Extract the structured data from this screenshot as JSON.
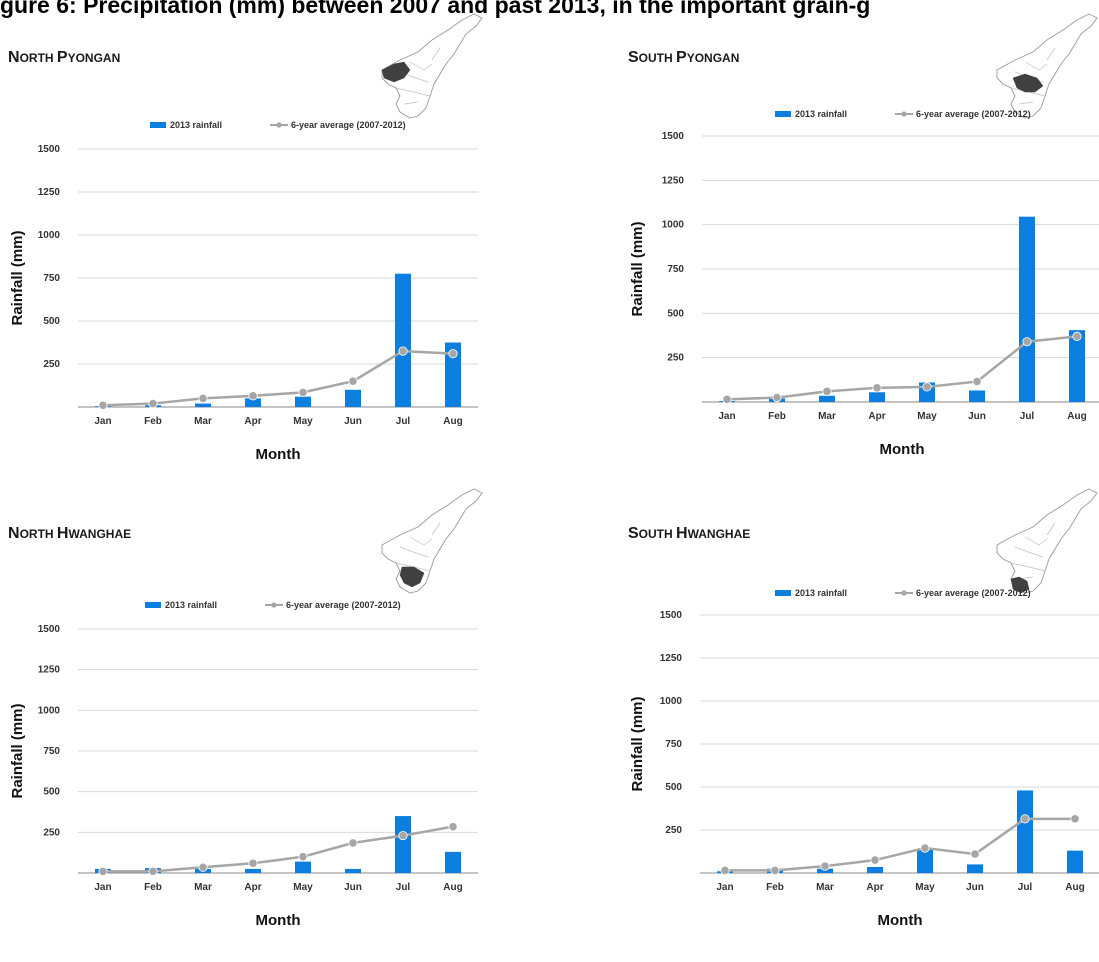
{
  "page": {
    "title": "gure 6: Precipitation (mm) between 2007 and past 2013, in the important grain-g"
  },
  "colors": {
    "bar": "#0a7fe0",
    "line": "#a6a6a6",
    "marker": "#a6a6a6",
    "gridline": "#d9d9d9",
    "map_highlight": "#404040",
    "map_outline": "#9a9a9a"
  },
  "chart_data": [
    {
      "type": "bar",
      "region": "North Pyongan",
      "title_parts": [
        {
          "cap": "N",
          "rest": "ORTH"
        },
        {
          "cap": "P",
          "rest": "YONGAN"
        }
      ],
      "xlabel": "Month",
      "ylabel": "Rainfall (mm)",
      "categories": [
        "Jan",
        "Feb",
        "Mar",
        "Apr",
        "May",
        "Jun",
        "Jul",
        "Aug"
      ],
      "yticks": [
        250,
        500,
        750,
        "1000",
        "1250",
        1500
      ],
      "ylim": [
        0,
        1500
      ],
      "grid": true,
      "legend_position": "top",
      "map_icon": "north-pyongan-map-icon",
      "series": [
        {
          "name": "2013 rainfall",
          "type": "bar",
          "values": [
            5,
            10,
            20,
            50,
            60,
            100,
            775,
            375
          ]
        },
        {
          "name": "6-year average (2007-2012)",
          "type": "line",
          "values": [
            10,
            20,
            50,
            65,
            85,
            150,
            325,
            310
          ]
        }
      ]
    },
    {
      "type": "bar",
      "region": "South Pyongan",
      "title_parts": [
        {
          "cap": "S",
          "rest": "OUTH"
        },
        {
          "cap": "P",
          "rest": "YONGAN"
        }
      ],
      "xlabel": "Month",
      "ylabel": "Rainfall (mm)",
      "categories": [
        "Jan",
        "Feb",
        "Mar",
        "Apr",
        "May",
        "Jun",
        "Jul",
        "Aug"
      ],
      "yticks": [
        250,
        500,
        750,
        1000,
        1250,
        1500
      ],
      "ylim": [
        0,
        1500
      ],
      "grid": true,
      "legend_position": "top",
      "map_icon": "south-pyongan-map-icon",
      "series": [
        {
          "name": "2013 rainfall",
          "type": "bar",
          "values": [
            5,
            20,
            35,
            55,
            110,
            65,
            1045,
            405
          ]
        },
        {
          "name": "6-year average (2007-2012)",
          "type": "line",
          "values": [
            15,
            25,
            60,
            80,
            85,
            115,
            340,
            370
          ]
        }
      ]
    },
    {
      "type": "bar",
      "region": "North Hwanghae",
      "title_parts": [
        {
          "cap": "N",
          "rest": "ORTH"
        },
        {
          "cap": "H",
          "rest": "WANGHAE"
        }
      ],
      "xlabel": "Month",
      "ylabel": "Rainfall (mm)",
      "categories": [
        "Jan",
        "Feb",
        "Mar",
        "Apr",
        "May",
        "Jun",
        "Jul",
        "Aug"
      ],
      "yticks": [
        250,
        500,
        750,
        1000,
        1250,
        1500
      ],
      "ylim": [
        0,
        1500
      ],
      "grid": true,
      "legend_position": "top",
      "map_icon": "north-hwanghae-map-icon",
      "series": [
        {
          "name": "2013 rainfall",
          "type": "bar",
          "values": [
            25,
            30,
            25,
            25,
            70,
            25,
            350,
            130
          ]
        },
        {
          "name": "6-year average (2007-2012)",
          "type": "line",
          "values": [
            10,
            10,
            35,
            60,
            100,
            185,
            230,
            285
          ]
        }
      ]
    },
    {
      "type": "bar",
      "region": "South Hwanghae",
      "title_parts": [
        {
          "cap": "S",
          "rest": "OUTH"
        },
        {
          "cap": "H",
          "rest": "WANGHAE"
        }
      ],
      "xlabel": "Month",
      "ylabel": "Rainfall (mm)",
      "categories": [
        "Jan",
        "Feb",
        "Mar",
        "Apr",
        "May",
        "Jun",
        "Jul",
        "Aug"
      ],
      "yticks": [
        250,
        500,
        750,
        1000,
        1250,
        1500
      ],
      "ylim": [
        0,
        1500
      ],
      "grid": true,
      "legend_position": "top",
      "map_icon": "south-hwanghae-map-icon",
      "series": [
        {
          "name": "2013 rainfall",
          "type": "bar",
          "values": [
            10,
            25,
            25,
            35,
            140,
            50,
            480,
            130
          ]
        },
        {
          "name": "6-year average (2007-2012)",
          "type": "line",
          "values": [
            15,
            15,
            40,
            75,
            145,
            110,
            315,
            315
          ]
        }
      ]
    }
  ]
}
